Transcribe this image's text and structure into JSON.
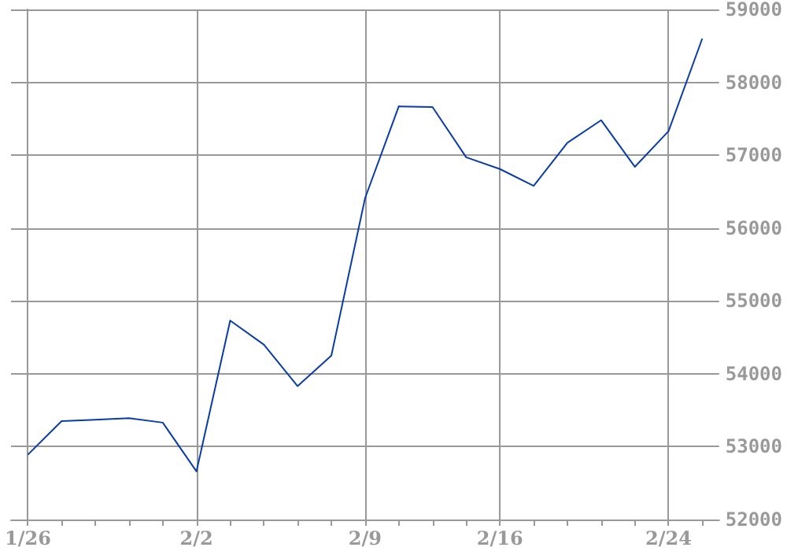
{
  "chart_data": {
    "type": "line",
    "categories": [
      "1/26",
      null,
      null,
      null,
      null,
      "2/2",
      null,
      null,
      null,
      null,
      "2/9",
      null,
      null,
      null,
      "2/16",
      null,
      null,
      null,
      null,
      "2/24",
      null
    ],
    "series": [
      {
        "color": "#0a3ca8",
        "values": [
          52890,
          53350,
          53370,
          53390,
          53330,
          52660,
          54730,
          54400,
          53830,
          54250,
          56410,
          57670,
          57660,
          56970,
          56810,
          56580,
          57170,
          57480,
          56840,
          57330,
          58600
        ]
      }
    ],
    "ylim": [
      52000,
      59000
    ],
    "yticks": [
      52000,
      53000,
      54000,
      55000,
      56000,
      57000,
      58000,
      59000
    ],
    "grid": true,
    "marker": "none",
    "line_style": "solid"
  }
}
